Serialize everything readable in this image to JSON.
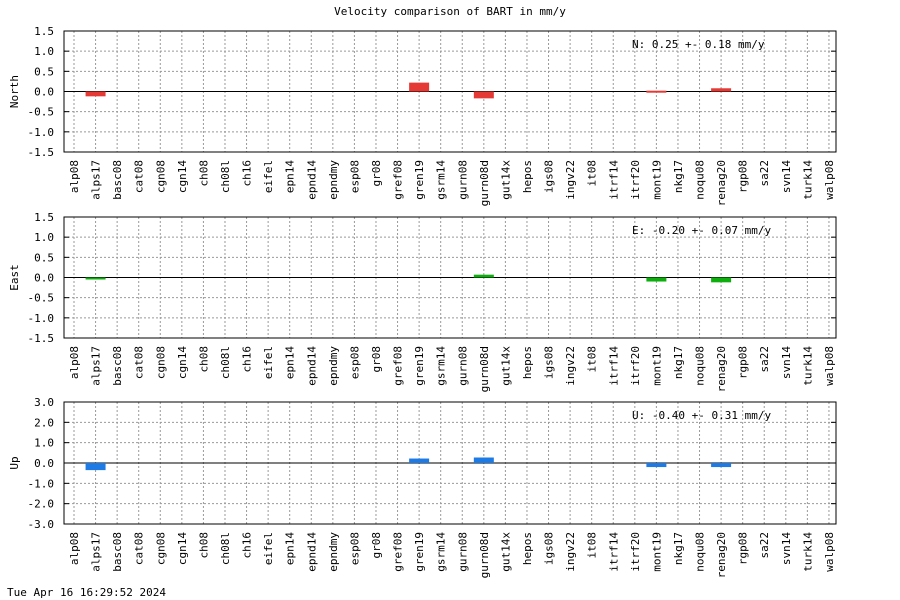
{
  "title": "Velocity comparison of BART in mm/y",
  "timestamp": "Tue Apr 16 16:29:52 2024",
  "chart_data": [
    {
      "type": "bar",
      "title": "Velocity comparison of BART in mm/y",
      "ylabel": "North",
      "ylim": [
        -1.5,
        1.5
      ],
      "yticks": [
        "1.5",
        "1.0",
        "0.5",
        "0.0",
        "-0.5",
        "-1.0",
        "-1.5"
      ],
      "grid": true,
      "color": "#e53935",
      "stat_label": "N:   0.25 +-  0.18 mm/y",
      "categories": [
        "alp08",
        "alps17",
        "basc08",
        "cat08",
        "cgn08",
        "cgn14",
        "ch08",
        "ch08l",
        "ch16",
        "eifel",
        "epn14",
        "epnd14",
        "epndmy",
        "esp08",
        "gr08",
        "gref08",
        "gren19",
        "gsrm14",
        "gurn08",
        "gurn08d",
        "gut14x",
        "hepos",
        "igs08",
        "ingv22",
        "it08",
        "itrf14",
        "itrf20",
        "mont19",
        "nkg17",
        "noqu08",
        "renag20",
        "rgp08",
        "sa22",
        "svn14",
        "turk14",
        "walp08"
      ],
      "values": {
        "alps17": -0.12,
        "gren19": 0.22,
        "gurn08d": -0.17,
        "mont19": 0.02,
        "renag20": 0.08
      }
    },
    {
      "type": "bar",
      "ylabel": "East",
      "ylim": [
        -1.5,
        1.5
      ],
      "yticks": [
        "1.5",
        "1.0",
        "0.5",
        "0.0",
        "-0.5",
        "-1.0",
        "-1.5"
      ],
      "grid": true,
      "color": "#0fae0f",
      "stat_label": "E:  -0.20 +-  0.07 mm/y",
      "categories": [
        "alp08",
        "alps17",
        "basc08",
        "cat08",
        "cgn08",
        "cgn14",
        "ch08",
        "ch08l",
        "ch16",
        "eifel",
        "epn14",
        "epnd14",
        "epndmy",
        "esp08",
        "gr08",
        "gref08",
        "gren19",
        "gsrm14",
        "gurn08",
        "gurn08d",
        "gut14x",
        "hepos",
        "igs08",
        "ingv22",
        "it08",
        "itrf14",
        "itrf20",
        "mont19",
        "nkg17",
        "noqu08",
        "renag20",
        "rgp08",
        "sa22",
        "svn14",
        "turk14",
        "walp08"
      ],
      "values": {
        "alps17": -0.02,
        "gurn08d": 0.07,
        "mont19": -0.1,
        "renag20": -0.12
      }
    },
    {
      "type": "bar",
      "ylabel": "Up",
      "ylim": [
        -3.0,
        3.0
      ],
      "yticks": [
        "3.0",
        "2.0",
        "1.0",
        "0.0",
        "-1.0",
        "-2.0",
        "-3.0"
      ],
      "grid": true,
      "color": "#1e7be6",
      "stat_label": "U:  -0.40 +-  0.31 mm/y",
      "categories": [
        "alp08",
        "alps17",
        "basc08",
        "cat08",
        "cgn08",
        "cgn14",
        "ch08",
        "ch08l",
        "ch16",
        "eifel",
        "epn14",
        "epnd14",
        "epndmy",
        "esp08",
        "gr08",
        "gref08",
        "gren19",
        "gsrm14",
        "gurn08",
        "gurn08d",
        "gut14x",
        "hepos",
        "igs08",
        "ingv22",
        "it08",
        "itrf14",
        "itrf20",
        "mont19",
        "nkg17",
        "noqu08",
        "renag20",
        "rgp08",
        "sa22",
        "svn14",
        "turk14",
        "walp08"
      ],
      "values": {
        "alps17": -0.35,
        "gren19": 0.22,
        "gurn08d": 0.27,
        "mont19": -0.2,
        "renag20": -0.2
      }
    }
  ]
}
